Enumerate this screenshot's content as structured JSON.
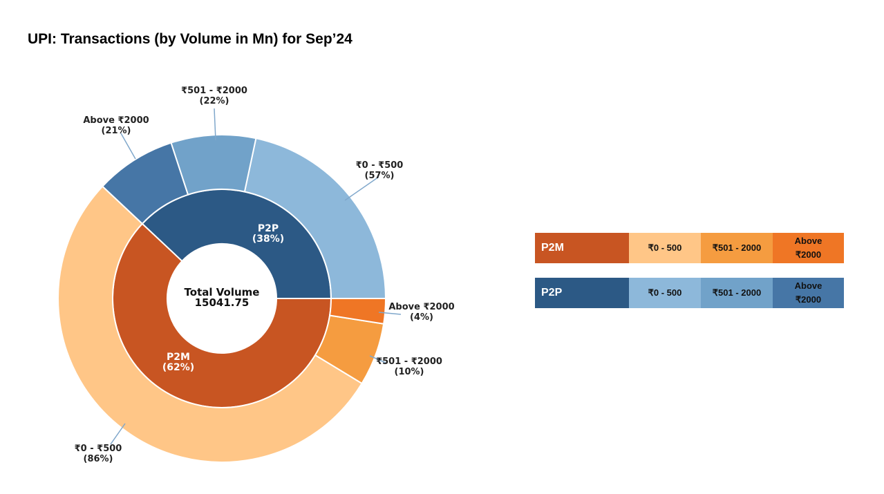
{
  "title": "UPI: Transactions (by Volume in Mn) for Sep’24",
  "chart_data": {
    "type": "nested-donut",
    "center_label": [
      "Total Volume",
      "15041.75"
    ],
    "inner": [
      {
        "name": "P2P",
        "pct": 38,
        "label": [
          "P2P",
          "(38%)"
        ],
        "color": "#2C5985"
      },
      {
        "name": "P2M",
        "pct": 62,
        "label": [
          "P2M",
          "(62%)"
        ],
        "color": "#C85522"
      }
    ],
    "outer": [
      {
        "group": "P2P",
        "name": "₹0 - ₹500",
        "pct": 57,
        "share": 21.66,
        "label": [
          "₹0 - ₹500",
          "(57%)"
        ],
        "color": "#8DB8DA"
      },
      {
        "group": "P2P",
        "name": "₹501 - ₹2000",
        "pct": 22,
        "share": 8.36,
        "label": [
          "₹501 - ₹2000",
          "(22%)"
        ],
        "color": "#71A2C9"
      },
      {
        "group": "P2P",
        "name": "Above ₹2000",
        "pct": 21,
        "share": 7.98,
        "label": [
          "Above ₹2000",
          "(21%)"
        ],
        "color": "#4676A6"
      },
      {
        "group": "P2M",
        "name": "₹0 - ₹500",
        "pct": 86,
        "share": 53.32,
        "label": [
          "₹0 - ₹500",
          "(86%)"
        ],
        "color": "#FFC687"
      },
      {
        "group": "P2M",
        "name": "₹501 - ₹2000",
        "pct": 10,
        "share": 6.2,
        "label": [
          "₹501 - ₹2000",
          "(10%)"
        ],
        "color": "#F59C40"
      },
      {
        "group": "P2M",
        "name": "Above ₹2000",
        "pct": 4,
        "share": 2.48,
        "label": [
          "Above ₹2000",
          "(4%)"
        ],
        "color": "#EF7625"
      }
    ]
  },
  "legend": [
    {
      "name": "P2M",
      "color": "#C85522",
      "items": [
        {
          "label": "₹0 - 500",
          "color": "#FFC687"
        },
        {
          "label": "₹501 - 2000",
          "color": "#F59C40"
        },
        {
          "label": "Above ₹2000",
          "color": "#EF7625"
        }
      ]
    },
    {
      "name": "P2P",
      "color": "#2C5985",
      "items": [
        {
          "label": "₹0 - 500",
          "color": "#8DB8DA"
        },
        {
          "label": "₹501 - 2000",
          "color": "#71A2C9"
        },
        {
          "label": "Above ₹2000",
          "color": "#4676A6"
        }
      ]
    }
  ]
}
